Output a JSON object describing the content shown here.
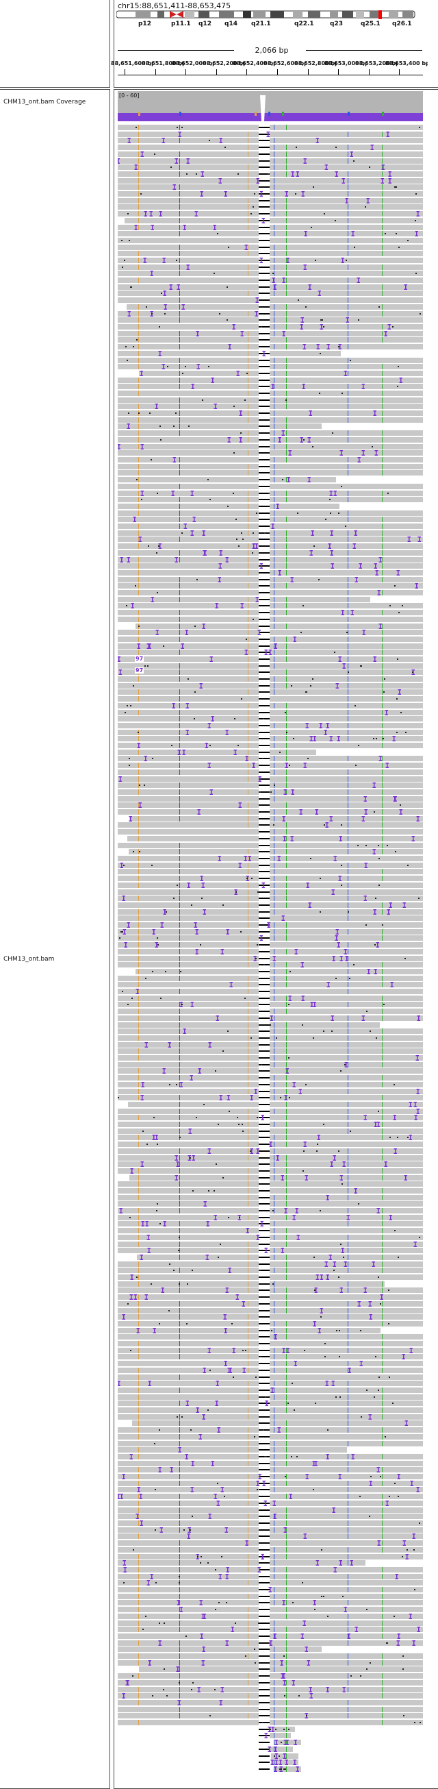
{
  "locus": "chr15:88,651,411-88,653,475",
  "ideogram": {
    "bands": [
      "p12",
      "p11.1",
      "q12",
      "q14",
      "q21.1",
      "q22.1",
      "q23",
      "q25.1",
      "q26.1"
    ]
  },
  "ruler": {
    "span_label": "2,066 bp",
    "tick_labels": [
      "88,651,600 bp",
      "88,651,800 bp",
      "88,652,000 bp",
      "88,652,200 bp",
      "88,652,400 bp",
      "88,652,600 bp",
      "88,652,800 bp",
      "88,653,000 bp",
      "88,653,200 bp",
      "88,653,400 bp"
    ]
  },
  "tracks": {
    "coverage_name": "CHM13_ont.bam Coverage",
    "coverage_range": "[0 - 60]",
    "alignment_name": "CHM13_ont.bam"
  },
  "insertion_labels": [
    "97",
    "97"
  ],
  "colors": {
    "read_fill": "#c8c8c8",
    "insertion": "#7a2fd0",
    "coverage": "#7d3fd6",
    "coverage_bg": "#b4b4b4",
    "mismatch_orange": "#e0a040",
    "mismatch_blue": "#3050e0",
    "mismatch_green": "#30b030"
  }
}
